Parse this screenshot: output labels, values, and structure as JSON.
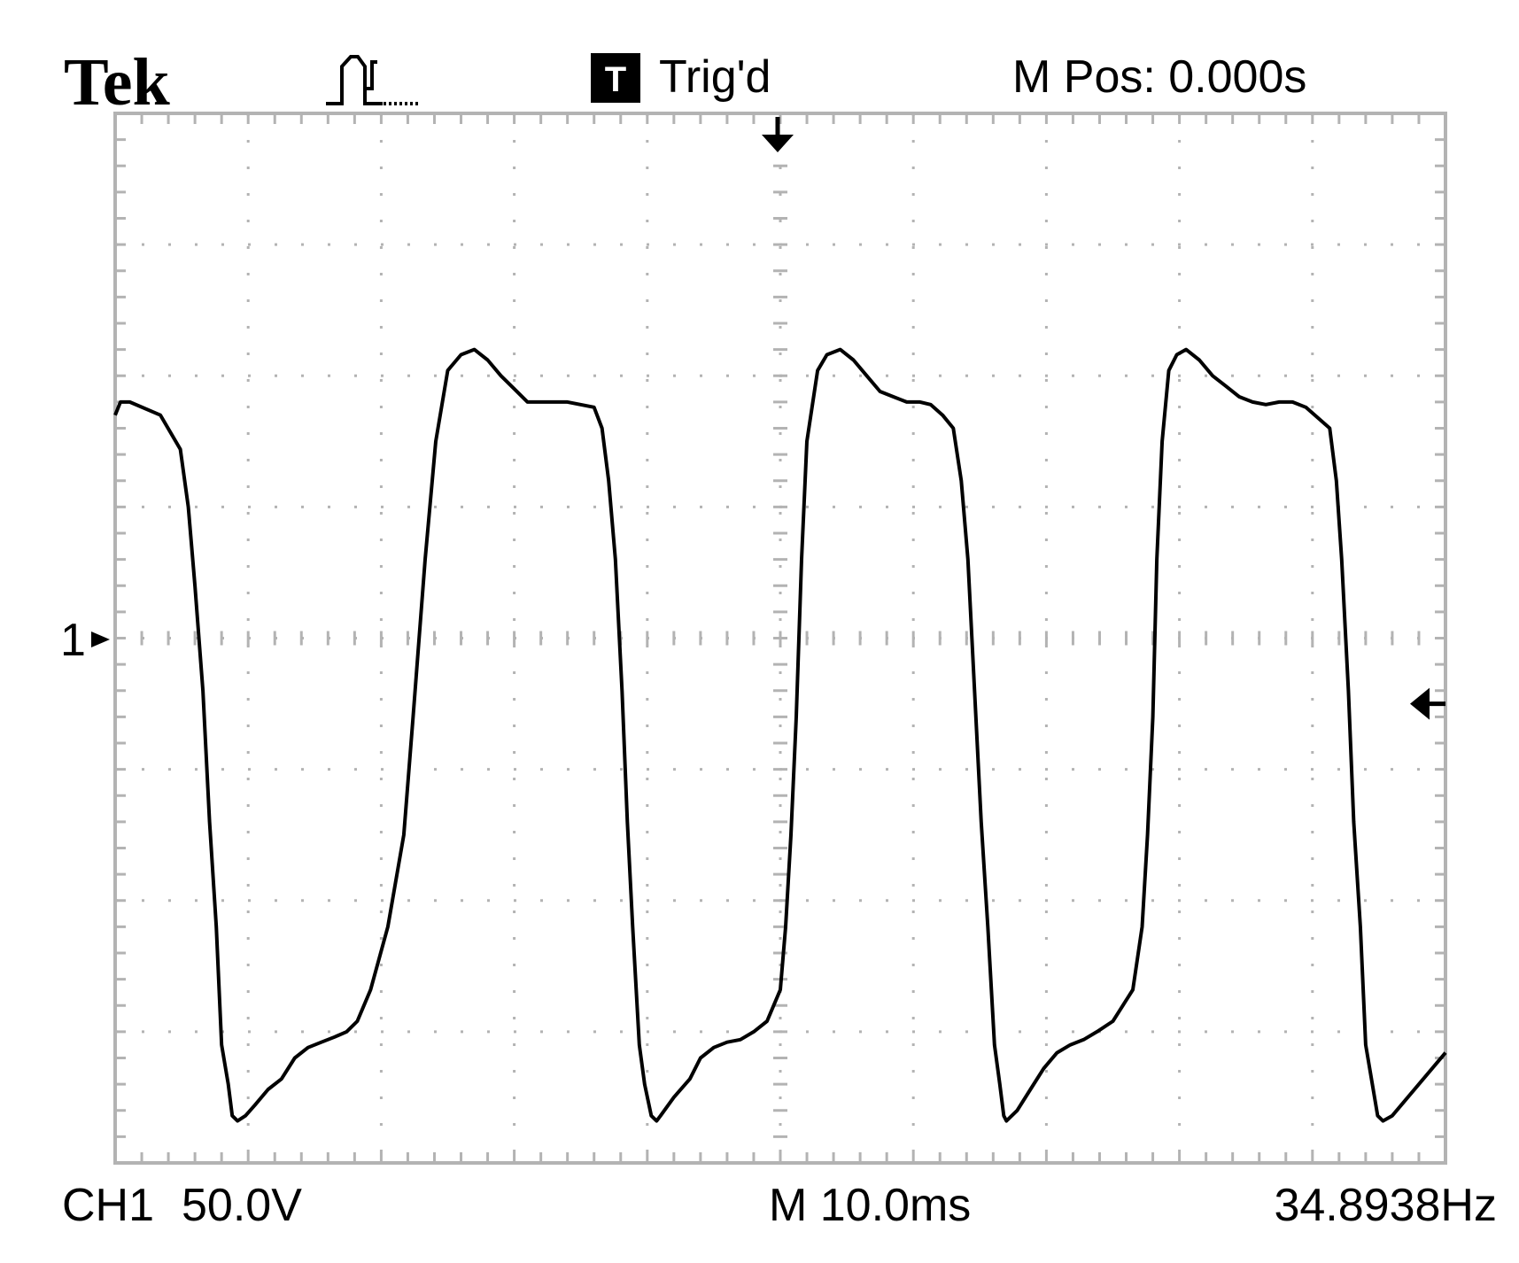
{
  "header": {
    "brand": "Tek",
    "acquire_icon": "acquisition-run-icon",
    "trigger_badge": "T",
    "trigger_status": "Trig'd",
    "position": "M Pos: 0.000s"
  },
  "footer": {
    "channel": "CH1",
    "volts_per_div": "50.0V",
    "timebase": "M 10.0ms",
    "frequency": "34.8938Hz"
  },
  "markers": {
    "channel_label": "1",
    "trigger_position_icon": "trigger-position-arrow-icon",
    "trigger_level_icon": "trigger-level-arrow-icon",
    "channel_ground_icon": "channel-1-ground-arrow-icon",
    "trigger_level_volts": -25
  },
  "colors": {
    "trace": "#000000",
    "grid": "#b3b3b3",
    "background": "#ffffff"
  },
  "chart_data": {
    "type": "line",
    "title": "",
    "xlabel": "",
    "ylabel": "",
    "x_unit": "ms",
    "y_unit": "V",
    "xlim": [
      -50,
      50
    ],
    "ylim": [
      -200,
      200
    ],
    "grid": true,
    "divisions": {
      "x": 10,
      "y": 8
    },
    "series": [
      {
        "x": [
          -50,
          -49.6,
          -48.9,
          -46.6,
          -45.1,
          -44.5,
          -44.0,
          -43.4,
          -42.9,
          -42.4,
          -42.0,
          -41.5,
          -41.2,
          -40.8,
          -40.2,
          -39.5,
          -38.5,
          -37.5,
          -36.5,
          -35.5,
          -34.5,
          -33.5,
          -32.6,
          -31.8,
          -30.8,
          -29.5,
          -28.3,
          -27.6,
          -26.7,
          -25.9,
          -25.0,
          -24.0,
          -23.0,
          -22.0,
          -21.0,
          -20.0,
          -19.0,
          -18.0,
          -16.0,
          -14.0,
          -13.4,
          -12.9,
          -12.4,
          -11.9,
          -11.5,
          -11.1,
          -10.6,
          -10.2,
          -9.7,
          -9.3,
          -9.0,
          -8.0,
          -6.8,
          -6.0,
          -5.0,
          -4.0,
          -3.0,
          -2.0,
          -1.0,
          0.0,
          0.4,
          0.8,
          1.2,
          1.6,
          2.0,
          2.8,
          3.5,
          4.5,
          5.5,
          6.5,
          7.5,
          8.5,
          9.5,
          10.5,
          11.3,
          12.2,
          13.0,
          13.6,
          14.1,
          14.6,
          15.1,
          15.6,
          16.1,
          16.5,
          16.8,
          17.0,
          17.8,
          18.8,
          19.8,
          20.8,
          21.8,
          22.8,
          23.8,
          25.0,
          26.5,
          27.2,
          27.6,
          28.0,
          28.3,
          28.7,
          29.2,
          29.8,
          30.5,
          31.5,
          32.5,
          33.5,
          34.5,
          35.5,
          36.5,
          37.5,
          38.5,
          39.5,
          41.3,
          41.8,
          42.2,
          42.7,
          43.1,
          43.6,
          44.0,
          44.5,
          44.9,
          45.3,
          46.0,
          47.0,
          48.0,
          49.0,
          50.0
        ],
        "y": [
          85,
          90,
          90,
          85,
          72,
          50,
          20,
          -20,
          -70,
          -110,
          -155,
          -170,
          -182,
          -184,
          -182,
          -178,
          -172,
          -168,
          -160,
          -156,
          -154,
          -152,
          -150,
          -146,
          -134,
          -110,
          -75,
          -30,
          30,
          75,
          102,
          108,
          110,
          106,
          100,
          95,
          90,
          90,
          90,
          88,
          80,
          60,
          30,
          -20,
          -70,
          -110,
          -155,
          -170,
          -182,
          -184,
          -182,
          -175,
          -168,
          -160,
          -156,
          -154,
          -153,
          -150,
          -146,
          -134,
          -110,
          -75,
          -30,
          30,
          75,
          102,
          108,
          110,
          106,
          100,
          94,
          92,
          90,
          90,
          89,
          85,
          80,
          60,
          30,
          -20,
          -70,
          -110,
          -155,
          -170,
          -182,
          -184,
          -180,
          -172,
          -164,
          -158,
          -155,
          -153,
          -150,
          -146,
          -134,
          -110,
          -75,
          -30,
          30,
          75,
          102,
          108,
          110,
          106,
          100,
          96,
          92,
          90,
          89,
          90,
          90,
          88,
          80,
          60,
          30,
          -20,
          -70,
          -110,
          -155,
          -170,
          -182,
          -184,
          -182,
          -176,
          -170,
          -164,
          -158
        ]
      }
    ]
  }
}
